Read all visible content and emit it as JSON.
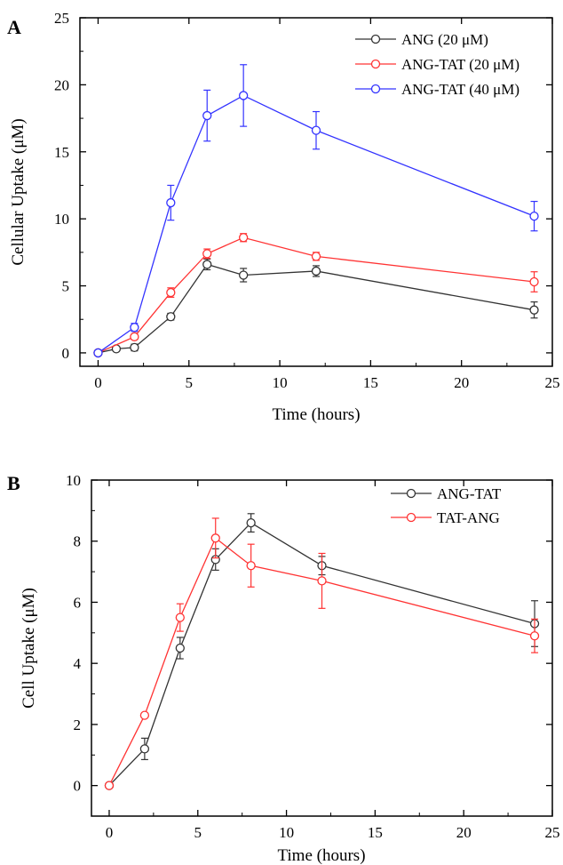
{
  "chart_data": [
    {
      "type": "line",
      "panel_label": "A",
      "xlabel": "Time (hours)",
      "ylabel": "Cellular Uptake (μM)",
      "xlim": [
        -1,
        25
      ],
      "ylim": [
        -1,
        25
      ],
      "xticks": [
        0,
        5,
        10,
        15,
        20,
        25
      ],
      "yticks": [
        0,
        5,
        10,
        15,
        20,
        25
      ],
      "legend_position": "top-right",
      "series": [
        {
          "name": "ANG (20 μM)",
          "color": "#333333",
          "marker": "open-circle",
          "x": [
            0,
            1,
            2,
            4,
            6,
            8,
            12,
            24
          ],
          "y": [
            0,
            0.3,
            0.4,
            2.7,
            6.6,
            5.8,
            6.1,
            3.2
          ],
          "err": [
            0.1,
            0.1,
            0.25,
            0.25,
            0.4,
            0.5,
            0.4,
            0.6
          ]
        },
        {
          "name": "ANG-TAT (20 μM)",
          "color": "#ff3333",
          "marker": "open-circle",
          "x": [
            0,
            2,
            4,
            6,
            8,
            12,
            24
          ],
          "y": [
            0,
            1.2,
            4.5,
            7.4,
            8.6,
            7.2,
            5.3
          ],
          "err": [
            0.1,
            0.2,
            0.35,
            0.35,
            0.3,
            0.3,
            0.75
          ]
        },
        {
          "name": "ANG-TAT (40 μM)",
          "color": "#3333ff",
          "marker": "open-circle",
          "x": [
            0,
            2,
            4,
            6,
            8,
            12,
            24
          ],
          "y": [
            0,
            1.9,
            11.2,
            17.7,
            19.2,
            16.6,
            10.2
          ],
          "err": [
            0.1,
            0.3,
            1.3,
            1.9,
            2.3,
            1.4,
            1.1
          ]
        }
      ]
    },
    {
      "type": "line",
      "panel_label": "B",
      "xlabel": "Time (hours)",
      "ylabel": "Cell Uptake (μM)",
      "xlim": [
        -1,
        25
      ],
      "ylim": [
        -1,
        10
      ],
      "xticks": [
        0,
        5,
        10,
        15,
        20,
        25
      ],
      "yticks": [
        0,
        2,
        4,
        6,
        8,
        10
      ],
      "legend_position": "top-right",
      "series": [
        {
          "name": "ANG-TAT",
          "color": "#333333",
          "marker": "open-circle",
          "x": [
            0,
            2,
            4,
            6,
            8,
            12,
            24
          ],
          "y": [
            0,
            1.2,
            4.5,
            7.4,
            8.6,
            7.2,
            5.3
          ],
          "err": [
            0.05,
            0.35,
            0.35,
            0.35,
            0.3,
            0.3,
            0.75
          ]
        },
        {
          "name": "TAT-ANG",
          "color": "#ff3333",
          "marker": "open-circle",
          "x": [
            0,
            2,
            4,
            6,
            8,
            12,
            24
          ],
          "y": [
            0,
            2.3,
            5.5,
            8.1,
            7.2,
            6.7,
            4.9
          ],
          "err": [
            0.05,
            0.05,
            0.45,
            0.65,
            0.7,
            0.9,
            0.55
          ]
        }
      ]
    }
  ]
}
